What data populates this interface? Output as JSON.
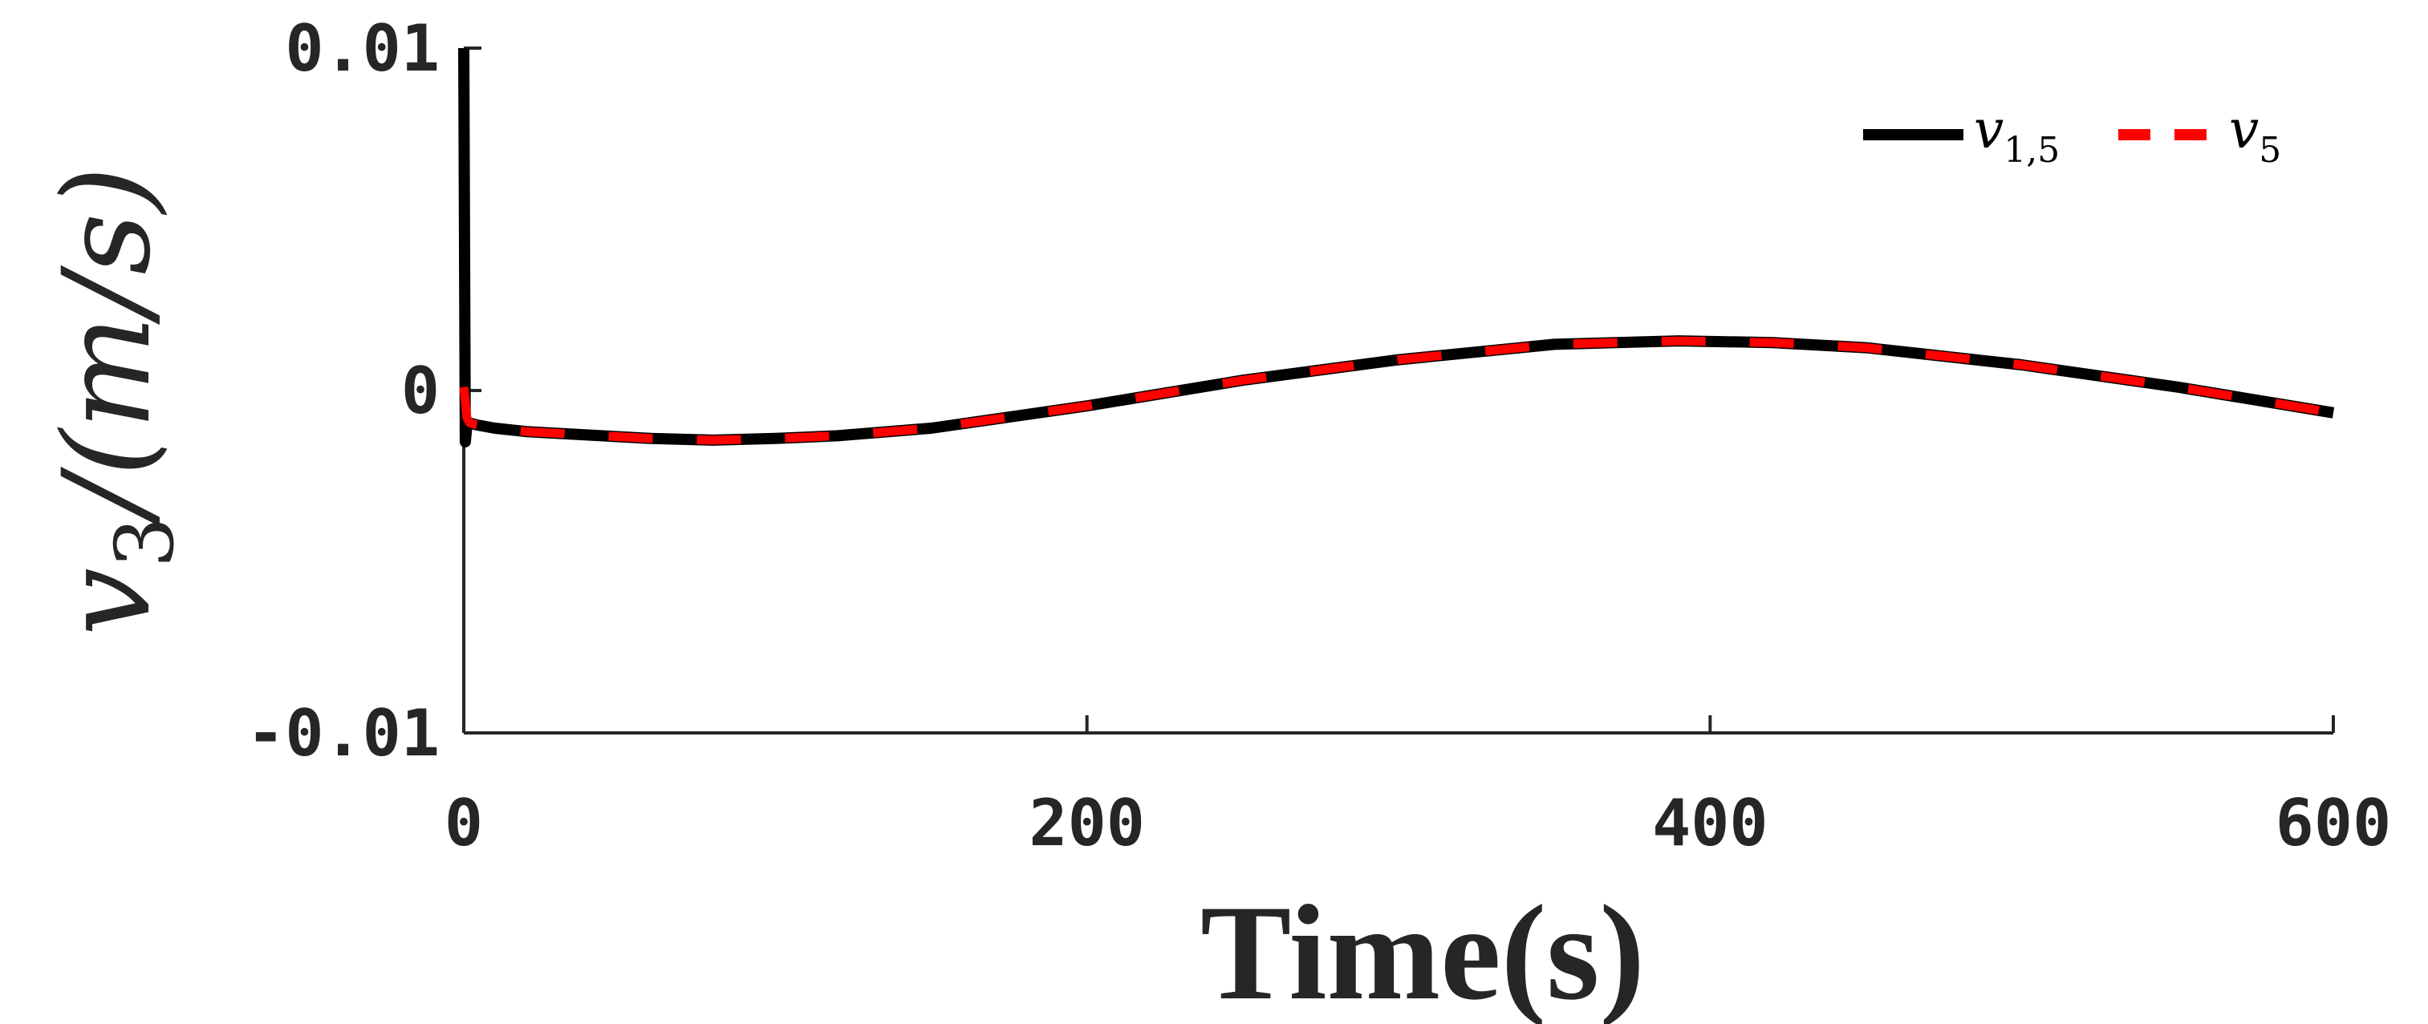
{
  "chart_data": {
    "type": "line",
    "xlabel": "Time(s)",
    "ylabel": {
      "main": "v",
      "sub": "3",
      "units": "/(m/s)"
    },
    "xlim": [
      0,
      600
    ],
    "ylim": [
      -0.01,
      0.01
    ],
    "xticks": [
      0,
      200,
      400,
      600
    ],
    "xtick_labels": [
      "0",
      "200",
      "400",
      "600"
    ],
    "yticks": [
      -0.01,
      0,
      0.01
    ],
    "ytick_labels": [
      "-0.01",
      "0",
      "0.01"
    ],
    "grid": false,
    "legend_position": "top-right",
    "x": [
      0,
      0.5,
      1,
      2,
      4,
      10,
      20,
      40,
      60,
      80,
      100,
      120,
      150,
      200,
      250,
      300,
      350,
      390,
      420,
      450,
      500,
      550,
      600
    ],
    "series": [
      {
        "name": "v1,5",
        "legend": {
          "main": "v",
          "sub": "1,5"
        },
        "color": "#000000",
        "dash": "solid",
        "values": [
          0.01,
          -0.0015,
          -0.001,
          -0.00095,
          -0.001,
          -0.0011,
          -0.0012,
          -0.0013,
          -0.0014,
          -0.00145,
          -0.0014,
          -0.00132,
          -0.0011,
          -0.00045,
          0.0003,
          0.0009,
          0.00135,
          0.00145,
          0.0014,
          0.00125,
          0.00075,
          0.0001,
          -0.00065
        ]
      },
      {
        "name": "v5",
        "legend": {
          "main": "v",
          "sub": "5"
        },
        "color": "#ff0000",
        "dash": "dashed",
        "values": [
          0.0001,
          -0.0003,
          -0.0008,
          -0.00095,
          -0.001,
          -0.0011,
          -0.0012,
          -0.0013,
          -0.0014,
          -0.00145,
          -0.0014,
          -0.00132,
          -0.0011,
          -0.00045,
          0.0003,
          0.0009,
          0.00135,
          0.00145,
          0.0014,
          0.00125,
          0.00075,
          0.0001,
          -0.00065
        ]
      }
    ]
  }
}
